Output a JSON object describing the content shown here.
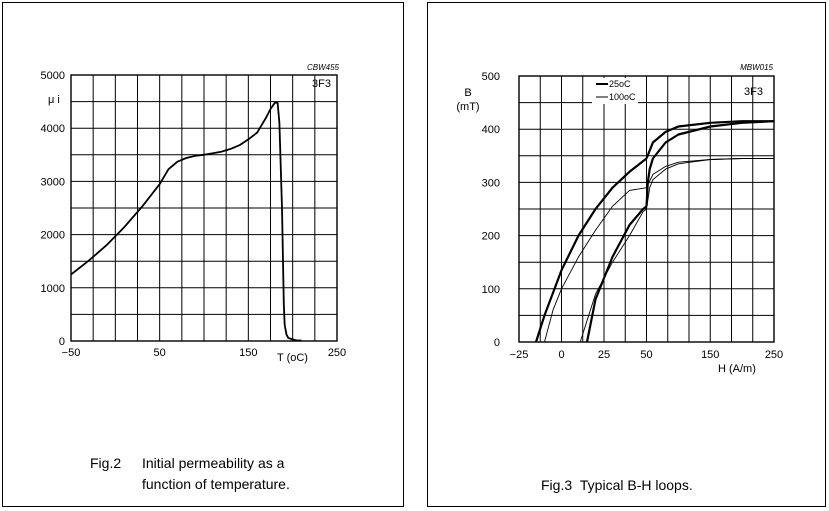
{
  "chart_data": [
    {
      "type": "line",
      "figure_code": "CBW455",
      "material": "3F3",
      "ylabel": "μ i",
      "xlabel": "T (oC)",
      "xlim": [
        -50,
        250
      ],
      "ylim": [
        0,
        5000
      ],
      "x_ticks": [
        "−50",
        "50",
        "150",
        "250"
      ],
      "y_ticks": [
        "0",
        "1000",
        "2000",
        "3000",
        "4000",
        "5000"
      ],
      "grid": true,
      "caption_number": "Fig.2",
      "caption_line1": "Initial permeability as a",
      "caption_line2": "function of temperature.",
      "series": [
        {
          "x": [
            -50,
            -30,
            -10,
            10,
            30,
            50,
            60,
            70,
            80,
            90,
            100,
            110,
            120,
            130,
            140,
            150,
            160,
            170,
            175,
            180,
            183,
            185,
            188,
            190,
            191,
            193,
            195,
            198,
            200,
            202,
            205,
            210
          ],
          "y": [
            1250,
            1510,
            1800,
            2140,
            2520,
            2950,
            3230,
            3370,
            3440,
            3480,
            3500,
            3530,
            3560,
            3610,
            3680,
            3790,
            3920,
            4200,
            4360,
            4480,
            4480,
            4100,
            2500,
            700,
            300,
            120,
            60,
            40,
            30,
            20,
            10,
            10
          ]
        }
      ]
    },
    {
      "type": "line",
      "figure_code": "MBW015",
      "material": "3F3",
      "ylabel_line1": "B",
      "ylabel_line2": "(mT)",
      "xlabel": "H (A/m)",
      "xlim": [
        -25,
        250
      ],
      "ylim": [
        0,
        500
      ],
      "x_ticks": [
        "−25",
        "0",
        "25",
        "50",
        "150",
        "250"
      ],
      "y_ticks": [
        "0",
        "100",
        "200",
        "300",
        "400",
        "500"
      ],
      "grid": true,
      "legend": [
        "25oC",
        "100oC"
      ],
      "legend_placement": "top-left",
      "caption_number": "Fig.3",
      "caption_line1": "Typical B-H loops.",
      "series": [
        {
          "name": "25oC",
          "branches": [
            {
              "x": [
                -15,
                -10,
                0,
                10,
                20,
                30,
                40,
                48,
                50
              ],
              "y": [
                0,
                50,
                135,
                200,
                250,
                290,
                320,
                340,
                345
              ]
            },
            {
              "x": [
                50,
                60,
                80,
                100,
                150,
                200,
                250
              ],
              "y": [
                345,
                375,
                395,
                405,
                412,
                415,
                415
              ]
            },
            {
              "x": [
                15,
                20,
                30,
                40,
                48,
                50
              ],
              "y": [
                0,
                80,
                160,
                220,
                250,
                255
              ]
            },
            {
              "x": [
                50,
                52,
                55,
                60,
                80,
                100,
                150,
                200,
                250
              ],
              "y": [
                255,
                300,
                325,
                345,
                375,
                390,
                405,
                412,
                415
              ]
            }
          ]
        },
        {
          "name": "100oC",
          "branches": [
            {
              "x": [
                -10,
                -5,
                0,
                10,
                20,
                30,
                40,
                50
              ],
              "y": [
                0,
                60,
                100,
                160,
                210,
                255,
                285,
                290
              ]
            },
            {
              "x": [
                50,
                60,
                80,
                100,
                150,
                200,
                250
              ],
              "y": [
                290,
                315,
                330,
                338,
                343,
                345,
                345
              ]
            },
            {
              "x": [
                11,
                15,
                20,
                30,
                40,
                48,
                50
              ],
              "y": [
                0,
                40,
                90,
                150,
                200,
                245,
                250
              ]
            },
            {
              "x": [
                50,
                55,
                60,
                80,
                100,
                150,
                200,
                250
              ],
              "y": [
                250,
                290,
                305,
                325,
                335,
                343,
                345,
                345
              ]
            }
          ]
        }
      ]
    }
  ]
}
